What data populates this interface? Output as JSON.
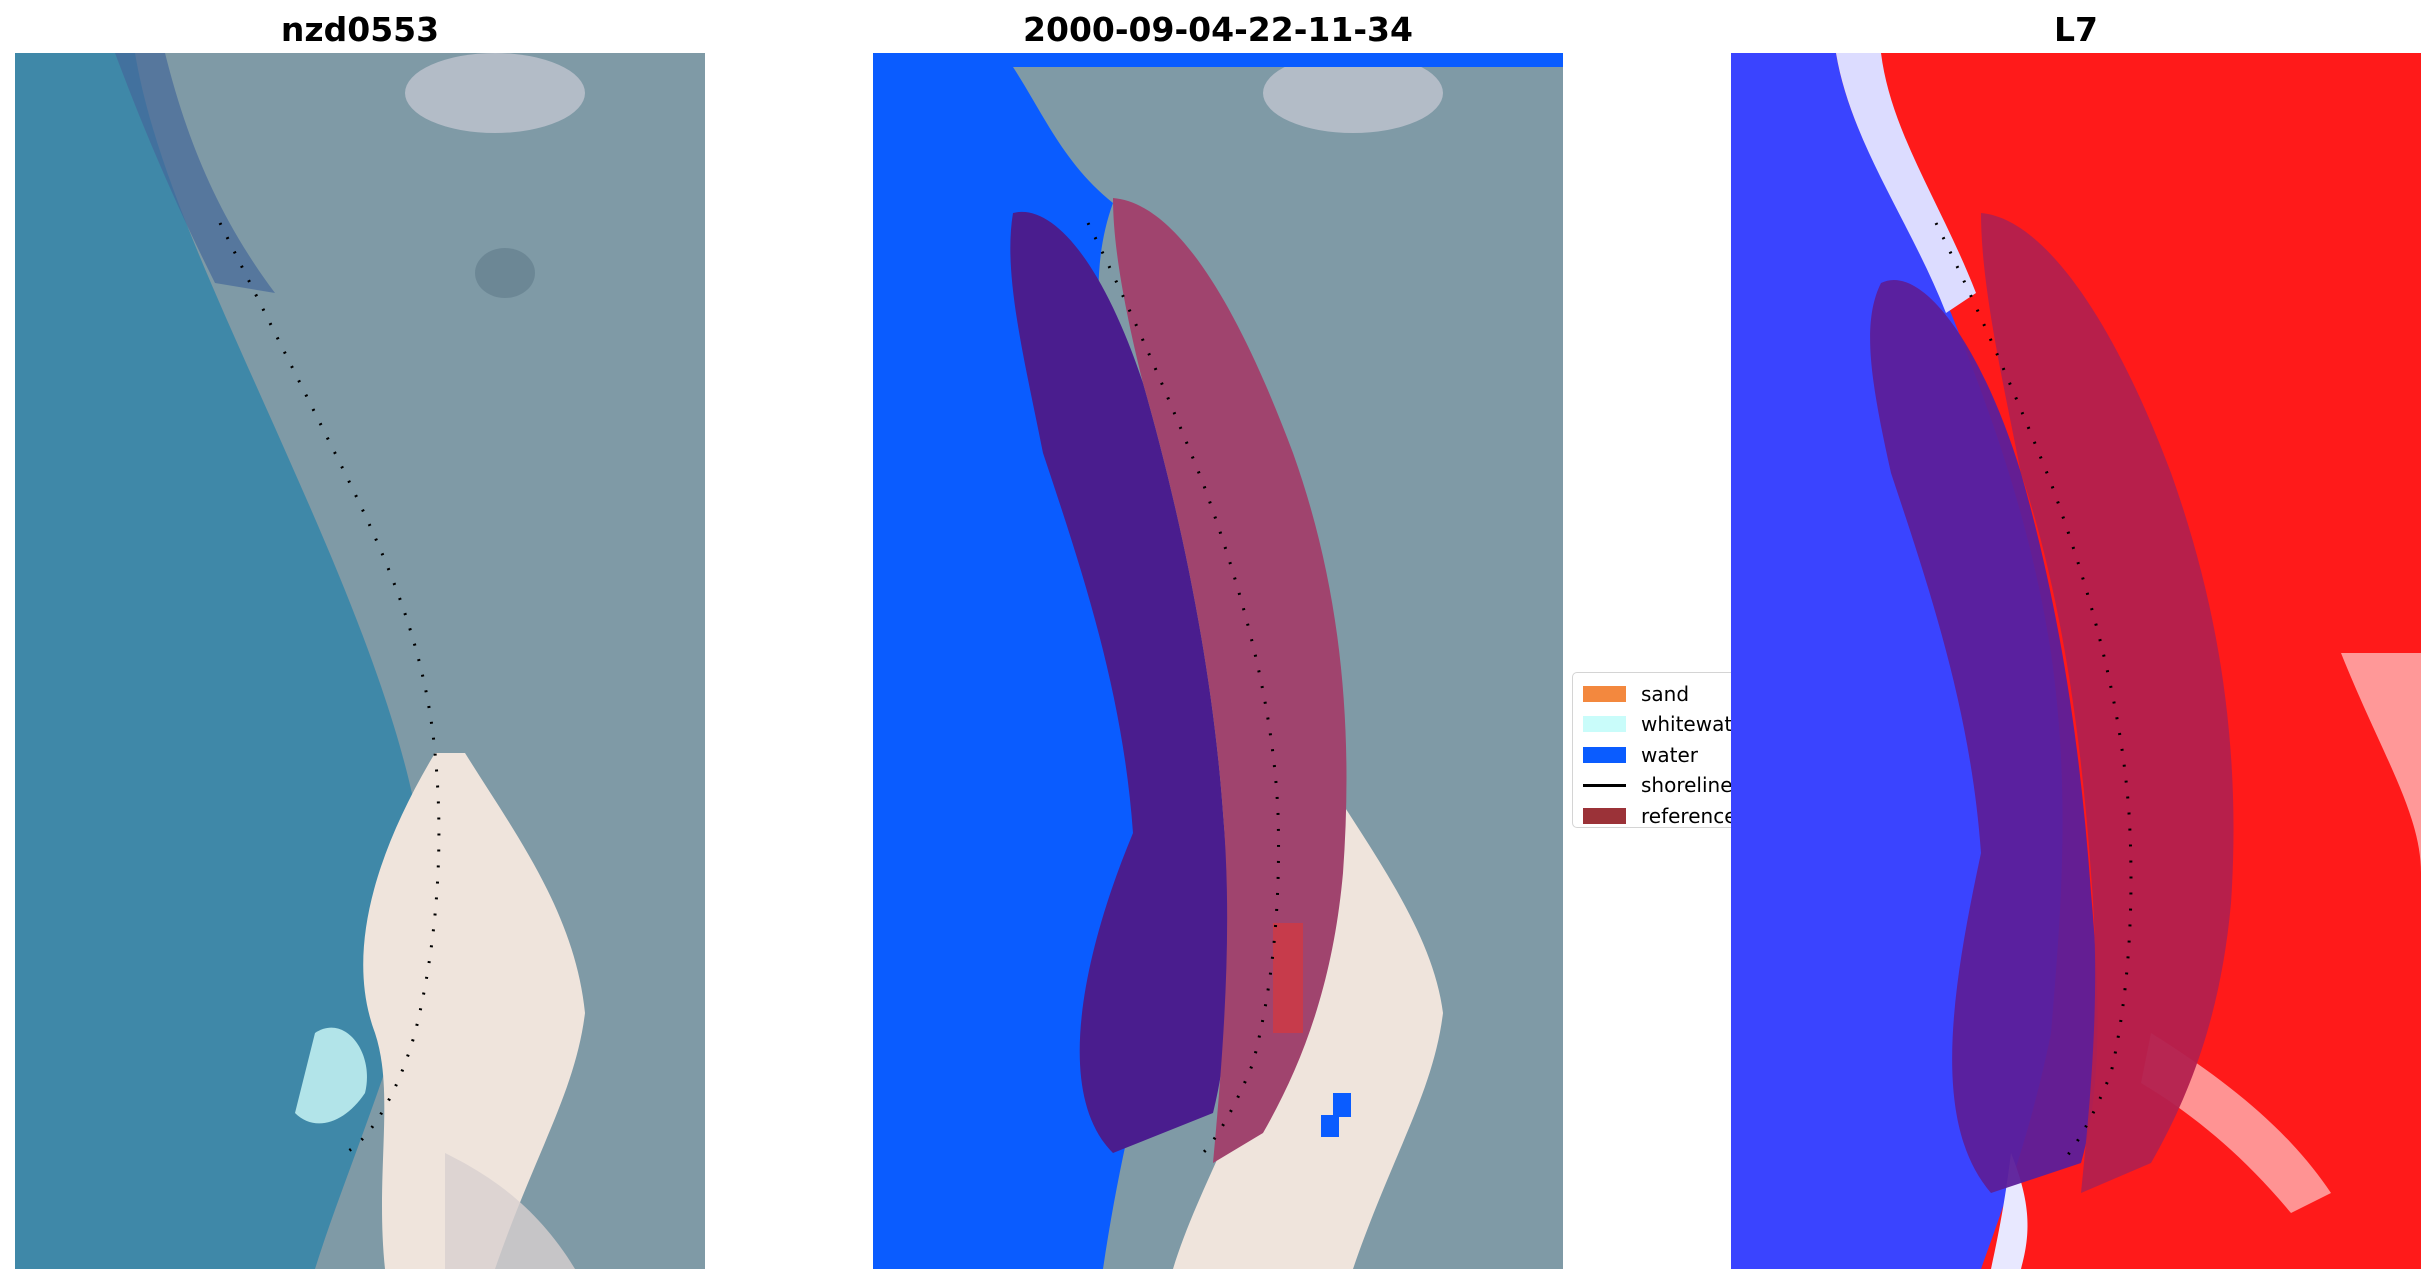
{
  "panels": [
    {
      "title": "nzd0553"
    },
    {
      "title": "2000-09-04-22-11-34"
    },
    {
      "title": "L7"
    }
  ],
  "legend": {
    "entries": [
      {
        "label": "sand",
        "color": "#f3883e",
        "kind": "patch"
      },
      {
        "label": "whitewater",
        "color": "#c9fcfa",
        "kind": "patch"
      },
      {
        "label": "water",
        "color": "#0a5cff",
        "kind": "patch"
      },
      {
        "label": "shoreline",
        "color": "#000000",
        "kind": "line"
      },
      {
        "label": "reference",
        "color": "#9b3238",
        "kind": "patch"
      }
    ]
  },
  "colors": {
    "sea": "#3f88a8",
    "land": "#7f9aa6",
    "sand_bright": "#efe4dc",
    "classified_water": "#0a5cff",
    "buffer_purple": "#4a1d8e",
    "buffer_pink": "#a0446e",
    "index_blue": "#3a44ff",
    "index_red": "#ff1a1a"
  }
}
